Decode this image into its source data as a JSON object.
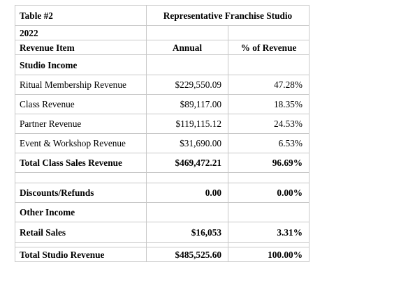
{
  "table": {
    "label": "Table #2",
    "header_title": "Representative Franchise Studio",
    "year": "2022",
    "col_item": "Revenue Item",
    "col_annual": "Annual",
    "col_pct": "% of Revenue",
    "section_studio_income": "Studio Income",
    "rows": [
      {
        "item": "Ritual Membership Revenue",
        "annual": "$229,550.09",
        "pct": "47.28%"
      },
      {
        "item": "Class Revenue",
        "annual": "$89,117.00",
        "pct": "18.35%"
      },
      {
        "item": "Partner Revenue",
        "annual": "$119,115.12",
        "pct": "24.53%"
      },
      {
        "item": "Event & Workshop Revenue",
        "annual": "$31,690.00",
        "pct": "6.53%"
      }
    ],
    "total_class": {
      "item": "Total Class Sales Revenue",
      "annual": "$469,472.21",
      "pct": "96.69%"
    },
    "discounts": {
      "item": "Discounts/Refunds",
      "annual": "0.00",
      "pct": "0.00%"
    },
    "section_other_income": "Other Income",
    "retail": {
      "item": "Retail Sales",
      "annual": "$16,053",
      "pct": "3.31%"
    },
    "total_studio": {
      "item": "Total Studio Revenue",
      "annual": "$485,525.60",
      "pct": "100.00%"
    }
  }
}
